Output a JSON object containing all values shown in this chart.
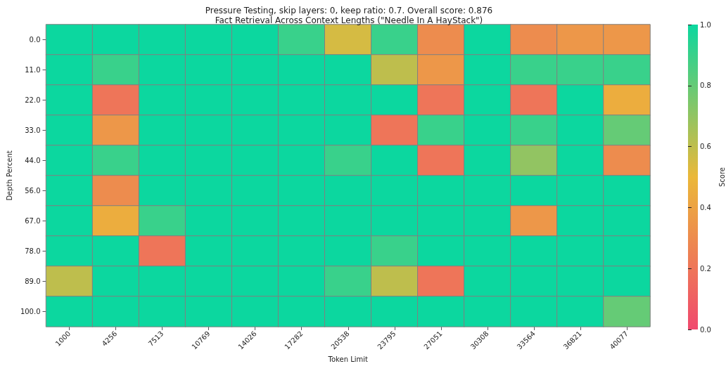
{
  "chart_data": {
    "type": "heatmap",
    "title": "Pressure Testing, skip layers: 0, keep ratio: 0.7. Overall score: 0.876",
    "subtitle": "Fact Retrieval Across Context Lengths (\"Needle In A HayStack\")",
    "xlabel": "Token Limit",
    "ylabel": "Depth Percent",
    "clabel": "Score",
    "categories": [
      "1000",
      "4256",
      "7513",
      "10769",
      "14026",
      "17282",
      "20538",
      "23795",
      "27051",
      "30308",
      "33564",
      "36821",
      "40077"
    ],
    "y_categories": [
      "0.0",
      "11.0",
      "22.0",
      "33.0",
      "44.0",
      "56.0",
      "67.0",
      "78.0",
      "89.0",
      "100.0"
    ],
    "cells": [
      [
        1,
        1,
        1,
        1,
        1,
        0.9,
        0.55,
        0.9,
        0.3,
        1,
        0.3,
        0.35,
        0.35
      ],
      [
        1,
        0.9,
        1,
        1,
        1,
        1,
        1,
        0.6,
        0.35,
        1,
        0.9,
        0.9,
        0.9
      ],
      [
        1,
        0.2,
        1,
        1,
        1,
        1,
        1,
        1,
        0.2,
        1,
        0.2,
        1,
        0.45
      ],
      [
        1,
        0.35,
        1,
        1,
        1,
        1,
        1,
        0.2,
        0.9,
        1,
        0.9,
        1,
        0.8
      ],
      [
        1,
        0.9,
        1,
        1,
        1,
        1,
        0.9,
        1,
        0.2,
        1,
        0.7,
        1,
        0.3
      ],
      [
        1,
        0.3,
        1,
        1,
        1,
        1,
        1,
        1,
        1,
        1,
        1,
        1,
        1
      ],
      [
        1,
        0.45,
        0.9,
        1,
        1,
        1,
        1,
        1,
        1,
        1,
        0.35,
        1,
        1
      ],
      [
        1,
        1,
        0.2,
        1,
        1,
        1,
        1,
        0.9,
        1,
        1,
        1,
        1,
        1
      ],
      [
        0.6,
        1,
        1,
        1,
        1,
        1,
        0.9,
        0.6,
        0.2,
        1,
        1,
        1,
        1
      ],
      [
        1,
        1,
        1,
        1,
        1,
        1,
        1,
        1,
        1,
        1,
        1,
        1,
        0.8
      ]
    ],
    "clim": [
      0,
      1
    ],
    "cticks": [
      {
        "value": 0,
        "label": "0.0"
      },
      {
        "value": 0.2,
        "label": "0.2"
      },
      {
        "value": 0.4,
        "label": "0.4"
      },
      {
        "value": 0.6,
        "label": "0.6"
      },
      {
        "value": 0.8,
        "label": "0.8"
      },
      {
        "value": 1,
        "label": "1.0"
      }
    ]
  }
}
